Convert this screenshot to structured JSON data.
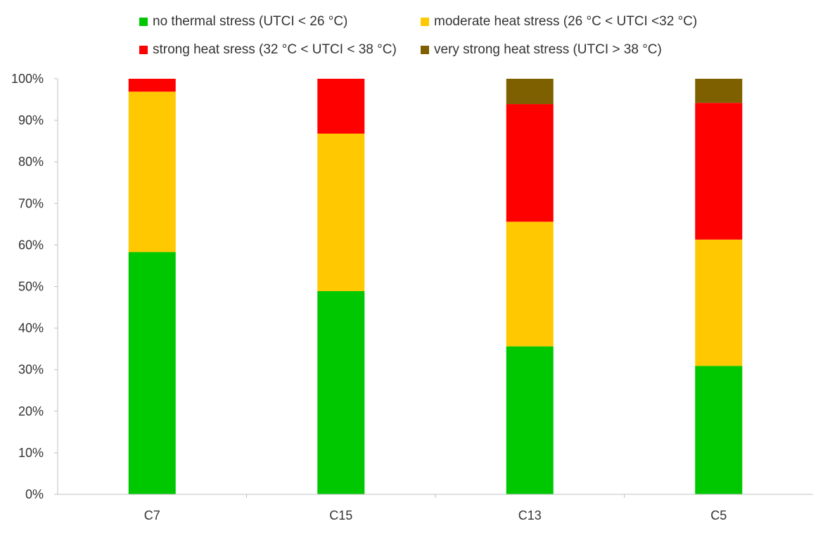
{
  "chart_data": {
    "type": "bar",
    "stacked": true,
    "title": "",
    "xlabel": "",
    "ylabel": "",
    "ylim": [
      0,
      100
    ],
    "yticks": [
      "0%",
      "10%",
      "20%",
      "30%",
      "40%",
      "50%",
      "60%",
      "70%",
      "80%",
      "90%",
      "100%"
    ],
    "categories": [
      "C7",
      "C15",
      "C13",
      "C5"
    ],
    "series": [
      {
        "name": "no thermal stress (UTCI < 26 °C)",
        "color": "#00c800",
        "values": [
          58.3,
          48.9,
          35.6,
          30.9
        ]
      },
      {
        "name": "moderate heat stress (26 °C < UTCI <32 °C)",
        "color": "#ffc800",
        "values": [
          38.6,
          37.9,
          30.0,
          30.4
        ]
      },
      {
        "name": "strong heat sress (32 °C < UTCI < 38 °C)",
        "color": "#ff0000",
        "values": [
          3.1,
          13.2,
          28.3,
          32.9
        ]
      },
      {
        "name": "very strong heat stress (UTCI > 38 °C)",
        "color": "#7f6000",
        "values": [
          0,
          0,
          6.1,
          5.8
        ]
      }
    ],
    "legend_position": "top",
    "grid": false
  }
}
